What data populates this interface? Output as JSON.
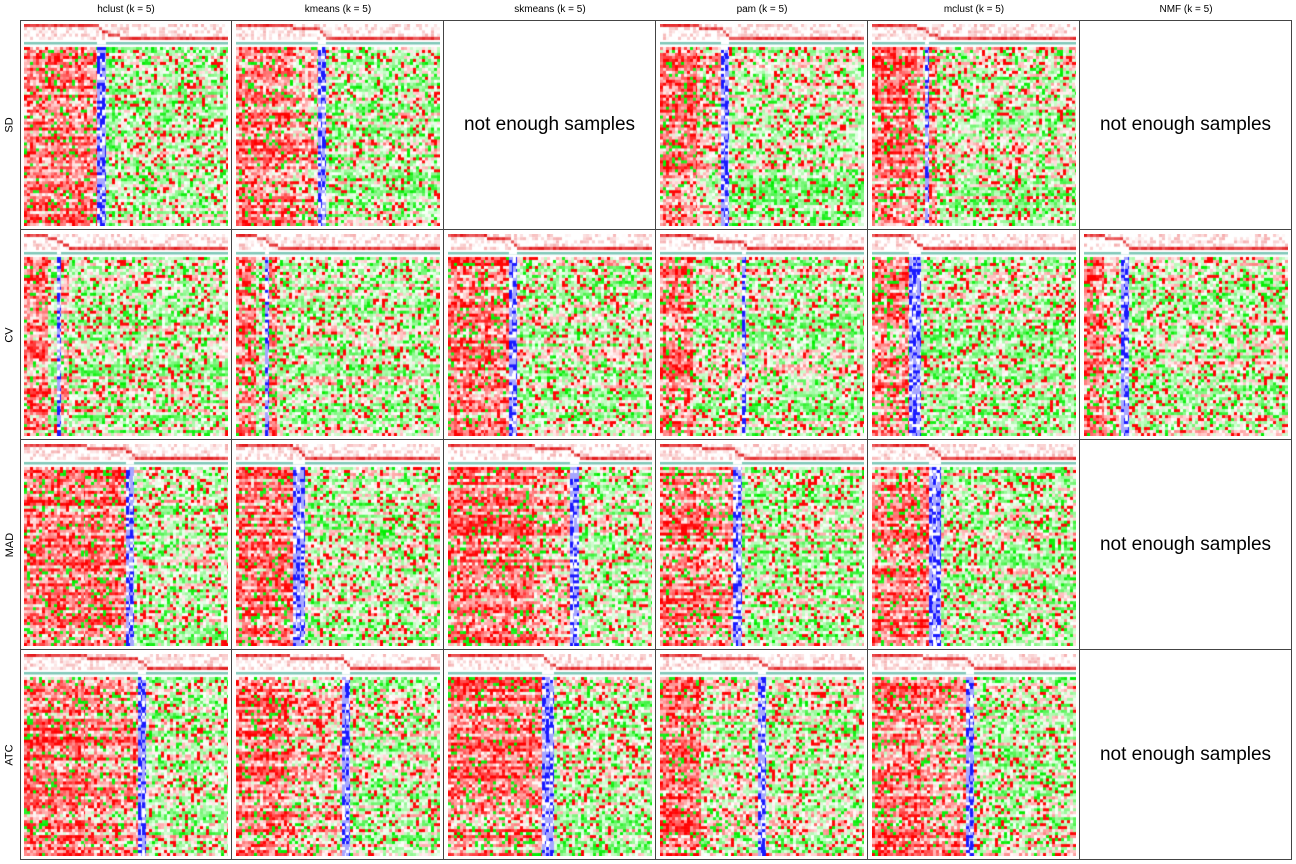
{
  "chart_data": {
    "type": "heatmap",
    "columns": [
      {
        "label": "hclust (k = 5)"
      },
      {
        "label": "kmeans (k = 5)"
      },
      {
        "label": "skmeans (k = 5)"
      },
      {
        "label": "pam (k = 5)"
      },
      {
        "label": "mclust (k = 5)"
      },
      {
        "label": "NMF (k = 5)"
      }
    ],
    "rows": [
      {
        "label": "SD"
      },
      {
        "label": "CV"
      },
      {
        "label": "MAD"
      },
      {
        "label": "ATC"
      }
    ],
    "empty_message": "not enough samples",
    "panels": [
      [
        {
          "status": "heatmap",
          "groups": [
            0.36,
            0.02,
            0.02,
            0.06,
            0.54
          ]
        },
        {
          "status": "heatmap",
          "groups": [
            0.28,
            0.12,
            0.02,
            0.02,
            0.56
          ]
        },
        {
          "status": "empty"
        },
        {
          "status": "heatmap",
          "groups": [
            0.18,
            0.12,
            0.02,
            0.02,
            0.66
          ]
        },
        {
          "status": "heatmap",
          "groups": [
            0.22,
            0.04,
            0.02,
            0.04,
            0.68
          ]
        },
        {
          "status": "empty"
        }
      ],
      [
        {
          "status": "heatmap",
          "groups": [
            0.12,
            0.04,
            0.02,
            0.04,
            0.78
          ]
        },
        {
          "status": "heatmap",
          "groups": [
            0.1,
            0.04,
            0.02,
            0.04,
            0.8
          ]
        },
        {
          "status": "heatmap",
          "groups": [
            0.18,
            0.12,
            0.02,
            0.02,
            0.66
          ]
        },
        {
          "status": "heatmap",
          "groups": [
            0.16,
            0.1,
            0.14,
            0.02,
            0.58
          ]
        },
        {
          "status": "heatmap",
          "groups": [
            0.18,
            0.02,
            0.02,
            0.02,
            0.76
          ]
        },
        {
          "status": "heatmap",
          "groups": [
            0.1,
            0.08,
            0.02,
            0.02,
            0.78
          ]
        }
      ],
      [
        {
          "status": "heatmap",
          "groups": [
            0.3,
            0.2,
            0.02,
            0.02,
            0.46
          ]
        },
        {
          "status": "heatmap",
          "groups": [
            0.28,
            0.02,
            0.02,
            0.02,
            0.66
          ]
        },
        {
          "status": "heatmap",
          "groups": [
            0.42,
            0.18,
            0.02,
            0.02,
            0.36
          ]
        },
        {
          "status": "heatmap",
          "groups": [
            0.2,
            0.16,
            0.02,
            0.02,
            0.6
          ]
        },
        {
          "status": "heatmap",
          "groups": [
            0.28,
            0.02,
            0.02,
            0.02,
            0.66
          ]
        },
        {
          "status": "empty"
        }
      ],
      [
        {
          "status": "heatmap",
          "groups": [
            0.3,
            0.26,
            0.02,
            0.02,
            0.4
          ]
        },
        {
          "status": "heatmap",
          "groups": [
            0.26,
            0.26,
            0.02,
            0.02,
            0.44
          ]
        },
        {
          "status": "heatmap",
          "groups": [
            0.46,
            0.02,
            0.02,
            0.02,
            0.48
          ]
        },
        {
          "status": "heatmap",
          "groups": [
            0.2,
            0.28,
            0.02,
            0.02,
            0.48
          ]
        },
        {
          "status": "heatmap",
          "groups": [
            0.24,
            0.22,
            0.02,
            0.02,
            0.5
          ]
        },
        {
          "status": "empty"
        }
      ]
    ],
    "colors": {
      "high": "#ff0000",
      "mid": "#ffffff",
      "low": "#00ee00",
      "membership_low": "#ffffff",
      "membership_high": "#e31a1c",
      "silhouette_bar": "#7fc7b8",
      "blue_band": "#0000ff"
    }
  }
}
